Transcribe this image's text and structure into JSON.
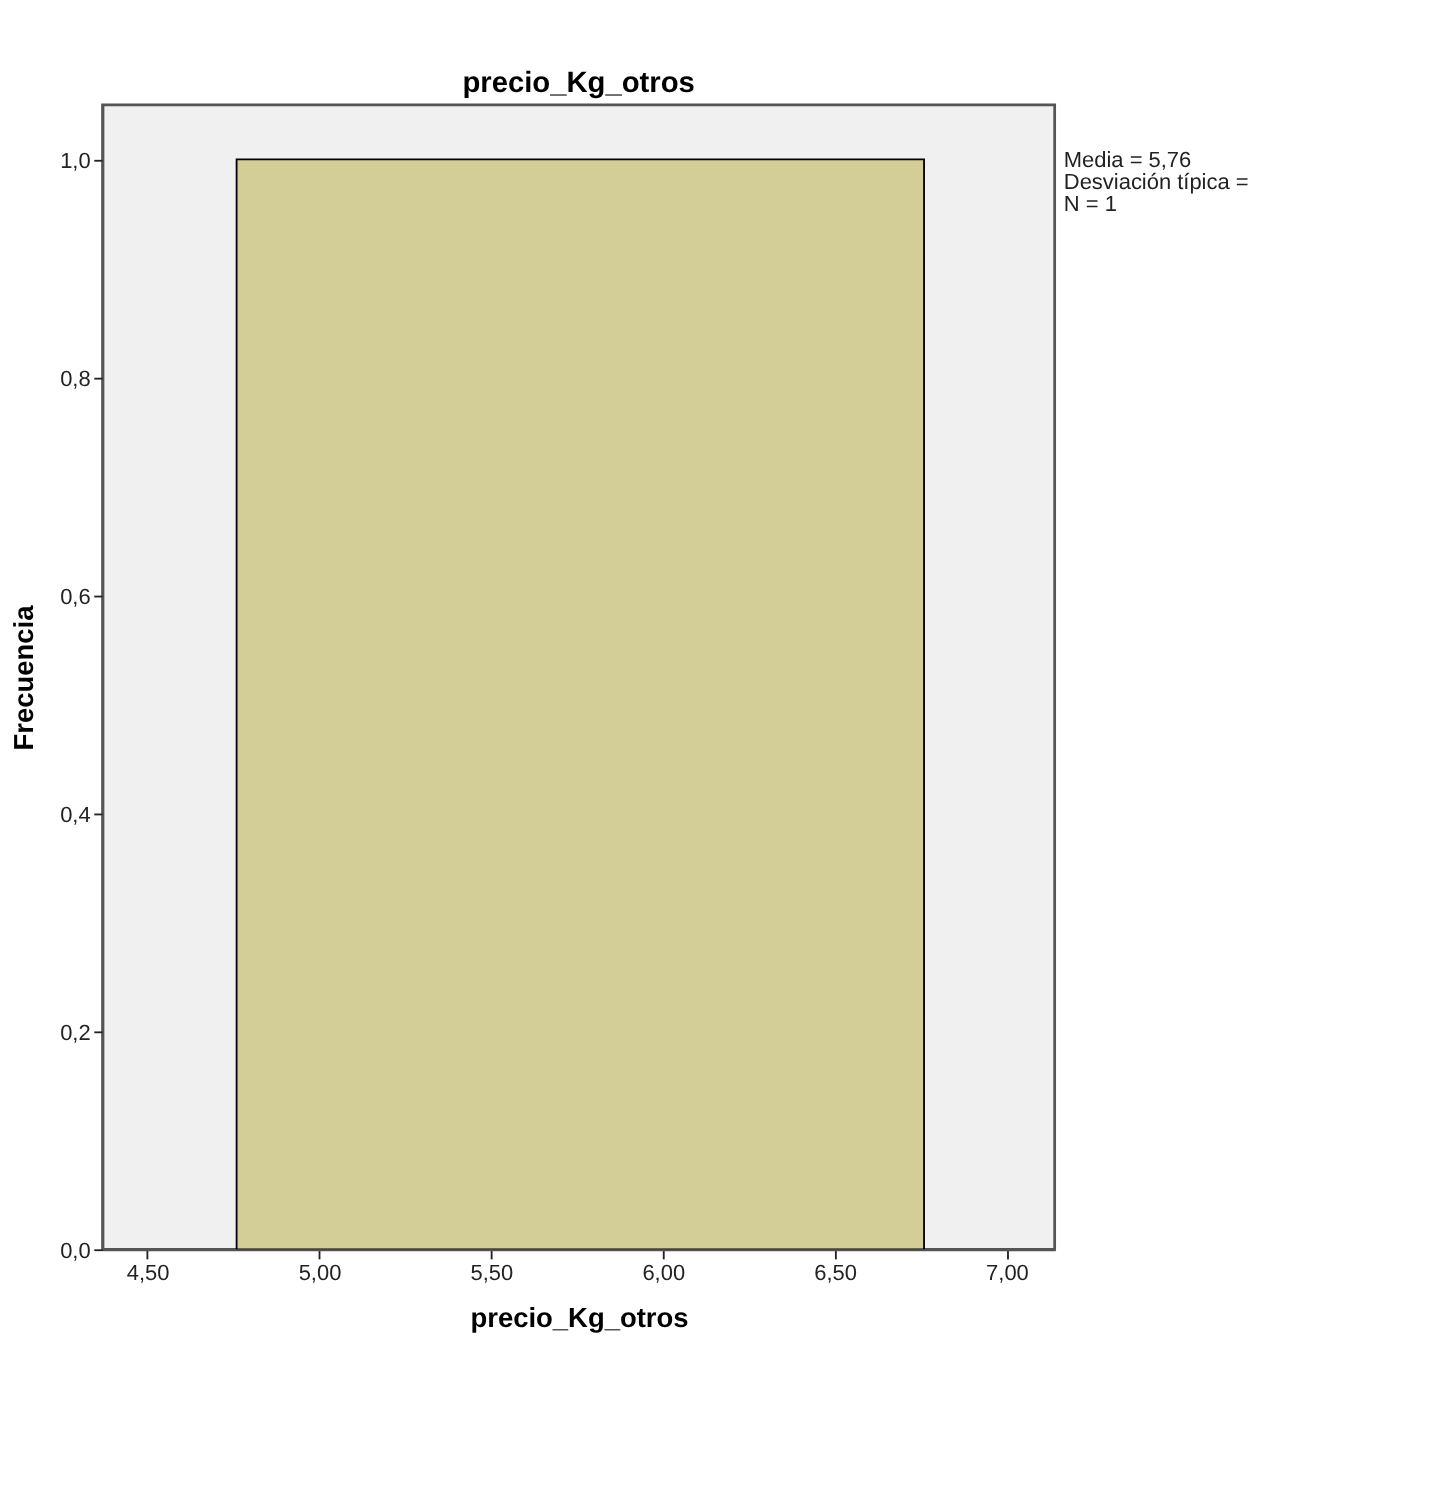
{
  "chart_data": {
    "type": "histogram",
    "title": "precio_Kg_otros",
    "xlabel": "precio_Kg_otros",
    "ylabel": "Frecuencia",
    "bins": [
      4.76,
      6.76
    ],
    "values": [
      1
    ],
    "color": "#d3ce97",
    "xlim": [
      4.37,
      7.14
    ],
    "xticks": [
      {
        "value": 4.5,
        "label": "4,50"
      },
      {
        "value": 5.0,
        "label": "5,00"
      },
      {
        "value": 5.5,
        "label": "5,50"
      },
      {
        "value": 6.0,
        "label": "6,00"
      },
      {
        "value": 6.5,
        "label": "6,50"
      },
      {
        "value": 7.0,
        "label": "7,00"
      }
    ],
    "ylim": [
      0,
      1.05
    ],
    "yticks": [
      {
        "value": 0,
        "label": "0,0"
      },
      {
        "value": 0.2,
        "label": "0,2"
      },
      {
        "value": 0.4,
        "label": "0,4"
      },
      {
        "value": 0.6,
        "label": "0,6"
      },
      {
        "value": 0.8,
        "label": "0,8"
      },
      {
        "value": 1.0,
        "label": "1,0"
      }
    ],
    "annotations": [
      "Media = 5,76",
      "Desviación típica =",
      "N = 1"
    ]
  }
}
